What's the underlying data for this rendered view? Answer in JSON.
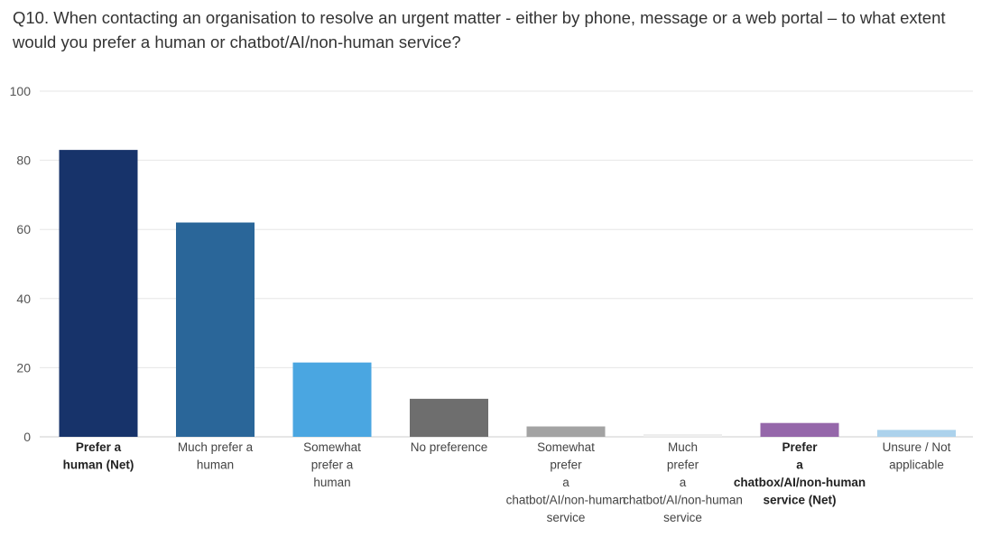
{
  "chart_data": {
    "type": "bar",
    "title": "Q10. When contacting an organisation to resolve an urgent matter - either by phone, message or a web portal – to what extent would you prefer a human or chatbot/AI/non-human service?",
    "xlabel": "",
    "ylabel": "",
    "ylim": [
      0,
      100
    ],
    "yticks": [
      0,
      20,
      40,
      60,
      80,
      100
    ],
    "grid": true,
    "legend": "none",
    "categories": [
      {
        "lines": [
          "Prefer a",
          "human (Net)"
        ],
        "bold": true
      },
      {
        "lines": [
          "Much prefer a",
          "human"
        ],
        "bold": false
      },
      {
        "lines": [
          "Somewhat",
          "prefer a",
          "human"
        ],
        "bold": false
      },
      {
        "lines": [
          "No preference"
        ],
        "bold": false
      },
      {
        "lines": [
          "Somewhat",
          "prefer",
          "a",
          "chatbot/AI/non-human",
          "service"
        ],
        "bold": false
      },
      {
        "lines": [
          "Much",
          "prefer",
          "a",
          "chatbot/AI/non-human",
          "service"
        ],
        "bold": false
      },
      {
        "lines": [
          "Prefer",
          "a",
          "chatbox/AI/non-human",
          "service (Net)"
        ],
        "bold": true
      },
      {
        "lines": [
          "Unsure / Not",
          "applicable"
        ],
        "bold": false
      }
    ],
    "values": [
      83,
      62,
      21.5,
      11,
      3,
      0.8,
      4,
      2
    ],
    "colors": [
      "#17336a",
      "#2a6699",
      "#4aa6e1",
      "#6e6e6e",
      "#a3a3a3",
      "#eeeeee",
      "#9567aa",
      "#acd2ec"
    ]
  }
}
